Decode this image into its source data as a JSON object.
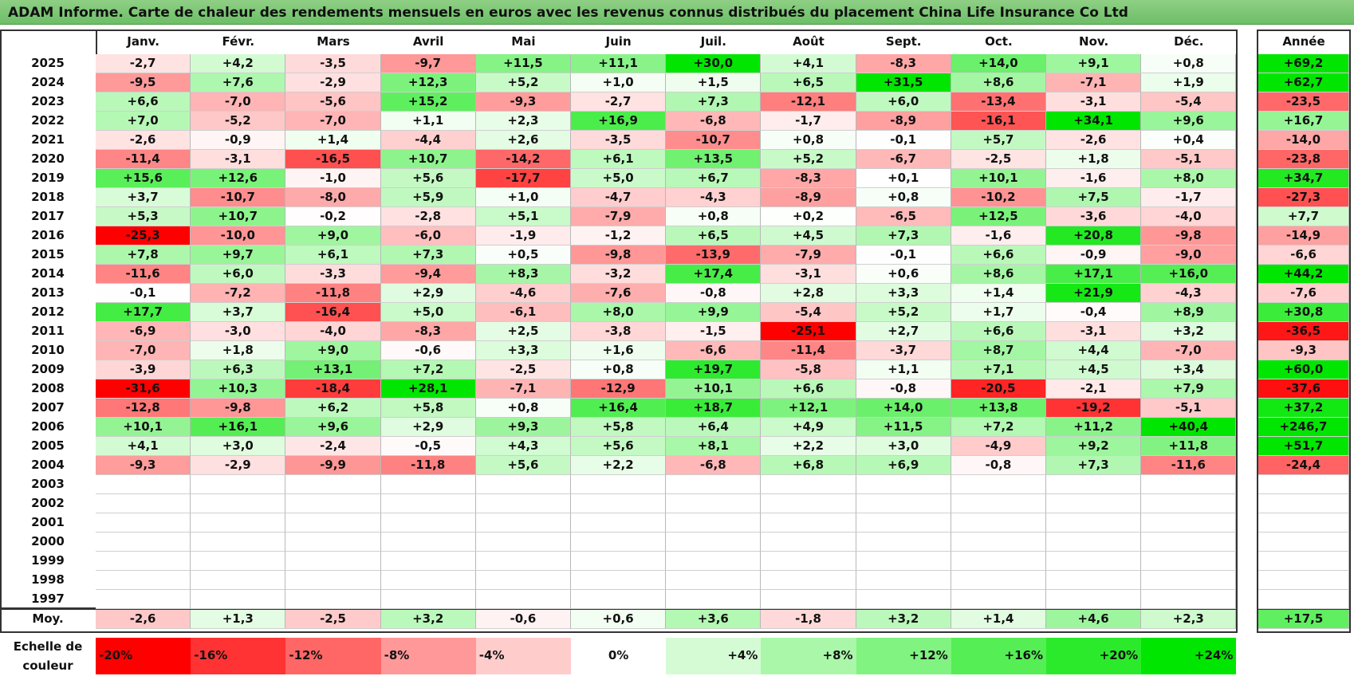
{
  "title": "ADAM Informe. Carte de chaleur des rendements mensuels en euros avec les revenus connus distribués du placement China Life Insurance Co Ltd",
  "chart_data": {
    "type": "heatmap",
    "columns": [
      "Janv.",
      "Févr.",
      "Mars",
      "Avril",
      "Mai",
      "Juin",
      "Juil.",
      "Août",
      "Sept.",
      "Oct.",
      "Nov.",
      "Déc."
    ],
    "year_column": "Année",
    "rows": [
      {
        "year": "2025",
        "values": [
          "-2,7",
          "+4,2",
          "-3,5",
          "-9,7",
          "+11,5",
          "+11,1",
          "+30,0",
          "+4,1",
          "-8,3",
          "+14,0",
          "+9,1",
          "+0,8"
        ],
        "annual": "+69,2"
      },
      {
        "year": "2024",
        "values": [
          "-9,5",
          "+7,6",
          "-2,9",
          "+12,3",
          "+5,2",
          "+1,0",
          "+1,5",
          "+6,5",
          "+31,5",
          "+8,6",
          "-7,1",
          "+1,9"
        ],
        "annual": "+62,7"
      },
      {
        "year": "2023",
        "values": [
          "+6,6",
          "-7,0",
          "-5,6",
          "+15,2",
          "-9,3",
          "-2,7",
          "+7,3",
          "-12,1",
          "+6,0",
          "-13,4",
          "-3,1",
          "-5,4"
        ],
        "annual": "-23,5"
      },
      {
        "year": "2022",
        "values": [
          "+7,0",
          "-5,2",
          "-7,0",
          "+1,1",
          "+2,3",
          "+16,9",
          "-6,8",
          "-1,7",
          "-8,9",
          "-16,1",
          "+34,1",
          "+9,6"
        ],
        "annual": "+16,7"
      },
      {
        "year": "2021",
        "values": [
          "-2,6",
          "-0,9",
          "+1,4",
          "-4,4",
          "+2,6",
          "-3,5",
          "-10,7",
          "+0,8",
          "-0,1",
          "+5,7",
          "-2,6",
          "+0,4"
        ],
        "annual": "-14,0"
      },
      {
        "year": "2020",
        "values": [
          "-11,4",
          "-3,1",
          "-16,5",
          "+10,7",
          "-14,2",
          "+6,1",
          "+13,5",
          "+5,2",
          "-6,7",
          "-2,5",
          "+1,8",
          "-5,1"
        ],
        "annual": "-23,8"
      },
      {
        "year": "2019",
        "values": [
          "+15,6",
          "+12,6",
          "-1,0",
          "+5,6",
          "-17,7",
          "+5,0",
          "+6,7",
          "-8,3",
          "+0,1",
          "+10,1",
          "-1,6",
          "+8,0"
        ],
        "annual": "+34,7"
      },
      {
        "year": "2018",
        "values": [
          "+3,7",
          "-10,7",
          "-8,0",
          "+5,9",
          "+1,0",
          "-4,7",
          "-4,3",
          "-8,9",
          "+0,8",
          "-10,2",
          "+7,5",
          "-1,7"
        ],
        "annual": "-27,3"
      },
      {
        "year": "2017",
        "values": [
          "+5,3",
          "+10,7",
          "-0,2",
          "-2,8",
          "+5,1",
          "-7,9",
          "+0,8",
          "+0,2",
          "-6,5",
          "+12,5",
          "-3,6",
          "-4,0"
        ],
        "annual": "+7,7"
      },
      {
        "year": "2016",
        "values": [
          "-25,3",
          "-10,0",
          "+9,0",
          "-6,0",
          "-1,9",
          "-1,2",
          "+6,5",
          "+4,5",
          "+7,3",
          "-1,6",
          "+20,8",
          "-9,8"
        ],
        "annual": "-14,9"
      },
      {
        "year": "2015",
        "values": [
          "+7,8",
          "+9,7",
          "+6,1",
          "+7,3",
          "+0,5",
          "-9,8",
          "-13,9",
          "-7,9",
          "-0,1",
          "+6,6",
          "-0,9",
          "-9,0"
        ],
        "annual": "-6,6"
      },
      {
        "year": "2014",
        "values": [
          "-11,6",
          "+6,0",
          "-3,3",
          "-9,4",
          "+8,3",
          "-3,2",
          "+17,4",
          "-3,1",
          "+0,6",
          "+8,6",
          "+17,1",
          "+16,0"
        ],
        "annual": "+44,2"
      },
      {
        "year": "2013",
        "values": [
          "-0,1",
          "-7,2",
          "-11,8",
          "+2,9",
          "-4,6",
          "-7,6",
          "-0,8",
          "+2,8",
          "+3,3",
          "+1,4",
          "+21,9",
          "-4,3"
        ],
        "annual": "-7,6"
      },
      {
        "year": "2012",
        "values": [
          "+17,7",
          "+3,7",
          "-16,4",
          "+5,0",
          "-6,1",
          "+8,0",
          "+9,9",
          "-5,4",
          "+5,2",
          "+1,7",
          "-0,4",
          "+8,9"
        ],
        "annual": "+30,8"
      },
      {
        "year": "2011",
        "values": [
          "-6,9",
          "-3,0",
          "-4,0",
          "-8,3",
          "+2,5",
          "-3,8",
          "-1,5",
          "-25,1",
          "+2,7",
          "+6,6",
          "-3,1",
          "+3,2"
        ],
        "annual": "-36,5"
      },
      {
        "year": "2010",
        "values": [
          "-7,0",
          "+1,8",
          "+9,0",
          "-0,6",
          "+3,3",
          "+1,6",
          "-6,6",
          "-11,4",
          "-3,7",
          "+8,7",
          "+4,4",
          "-7,0"
        ],
        "annual": "-9,3"
      },
      {
        "year": "2009",
        "values": [
          "-3,9",
          "+6,3",
          "+13,1",
          "+7,2",
          "-2,5",
          "+0,8",
          "+19,7",
          "-5,8",
          "+1,1",
          "+7,1",
          "+4,5",
          "+3,4"
        ],
        "annual": "+60,0"
      },
      {
        "year": "2008",
        "values": [
          "-31,6",
          "+10,3",
          "-18,4",
          "+28,1",
          "-7,1",
          "-12,9",
          "+10,1",
          "+6,6",
          "-0,8",
          "-20,5",
          "-2,1",
          "+7,9"
        ],
        "annual": "-37,6"
      },
      {
        "year": "2007",
        "values": [
          "-12,8",
          "-9,8",
          "+6,2",
          "+5,8",
          "+0,8",
          "+16,4",
          "+18,7",
          "+12,1",
          "+14,0",
          "+13,8",
          "-19,2",
          "-5,1"
        ],
        "annual": "+37,2"
      },
      {
        "year": "2006",
        "values": [
          "+10,1",
          "+16,1",
          "+9,6",
          "+2,9",
          "+9,3",
          "+5,8",
          "+6,4",
          "+4,9",
          "+11,5",
          "+7,2",
          "+11,2",
          "+40,4"
        ],
        "annual": "+246,7"
      },
      {
        "year": "2005",
        "values": [
          "+4,1",
          "+3,0",
          "-2,4",
          "-0,5",
          "+4,3",
          "+5,6",
          "+8,1",
          "+2,2",
          "+3,0",
          "-4,9",
          "+9,2",
          "+11,8"
        ],
        "annual": "+51,7"
      },
      {
        "year": "2004",
        "values": [
          "-9,3",
          "-2,9",
          "-9,9",
          "-11,8",
          "+5,6",
          "+2,2",
          "-6,8",
          "+6,8",
          "+6,9",
          "-0,8",
          "+7,3",
          "-11,6"
        ],
        "annual": "-24,4"
      },
      {
        "year": "2003",
        "values": [
          "",
          "",
          "",
          "",
          "",
          "",
          "",
          "",
          "",
          "",
          "",
          ""
        ],
        "annual": ""
      },
      {
        "year": "2002",
        "values": [
          "",
          "",
          "",
          "",
          "",
          "",
          "",
          "",
          "",
          "",
          "",
          ""
        ],
        "annual": ""
      },
      {
        "year": "2001",
        "values": [
          "",
          "",
          "",
          "",
          "",
          "",
          "",
          "",
          "",
          "",
          "",
          ""
        ],
        "annual": ""
      },
      {
        "year": "2000",
        "values": [
          "",
          "",
          "",
          "",
          "",
          "",
          "",
          "",
          "",
          "",
          "",
          ""
        ],
        "annual": ""
      },
      {
        "year": "1999",
        "values": [
          "",
          "",
          "",
          "",
          "",
          "",
          "",
          "",
          "",
          "",
          "",
          ""
        ],
        "annual": ""
      },
      {
        "year": "1998",
        "values": [
          "",
          "",
          "",
          "",
          "",
          "",
          "",
          "",
          "",
          "",
          "",
          ""
        ],
        "annual": ""
      },
      {
        "year": "1997",
        "values": [
          "",
          "",
          "",
          "",
          "",
          "",
          "",
          "",
          "",
          "",
          "",
          ""
        ],
        "annual": ""
      }
    ],
    "average": {
      "label": "Moy.",
      "values": [
        "-2,6",
        "+1,3",
        "-2,5",
        "+3,2",
        "-0,6",
        "+0,6",
        "+3,6",
        "-1,8",
        "+3,2",
        "+1,4",
        "+4,6",
        "+2,3"
      ],
      "annual": "+17,5"
    },
    "legend": {
      "label_line1": "Echelle de",
      "label_line2": "couleur",
      "steps": [
        "-20%",
        "-16%",
        "-12%",
        "-8%",
        "-4%",
        "0%",
        "+4%",
        "+8%",
        "+12%",
        "+16%",
        "+20%",
        "+24%"
      ],
      "step_values": [
        -20,
        -16,
        -12,
        -8,
        -4,
        0,
        4,
        8,
        12,
        16,
        20,
        24
      ]
    },
    "colors": {
      "negative_max": "#ff0000",
      "neutral": "#ffffff",
      "positive_max": "#00e600"
    }
  }
}
